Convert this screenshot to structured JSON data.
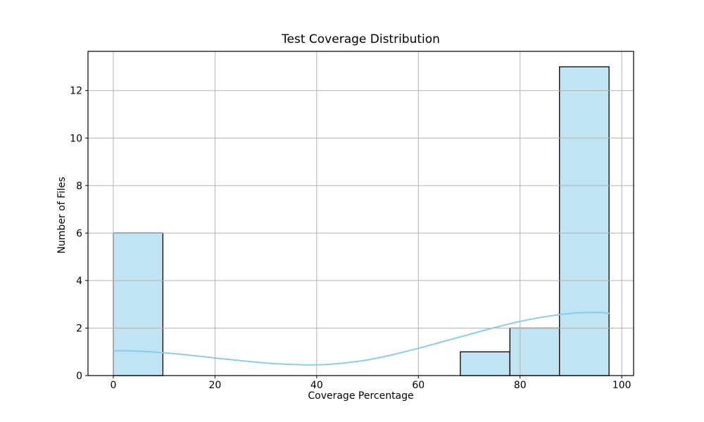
{
  "chart_data": {
    "type": "bar",
    "subtype": "histogram-with-kde",
    "title": "Test Coverage Distribution",
    "xlabel": "Coverage Percentage",
    "ylabel": "Number of Files",
    "xlim": [
      -4.98,
      102.33
    ],
    "ylim": [
      0,
      13.65
    ],
    "x_ticks": [
      0,
      20,
      40,
      60,
      80,
      100
    ],
    "y_ticks": [
      0,
      2,
      4,
      6,
      8,
      10,
      12
    ],
    "grid": true,
    "legend": false,
    "bars": [
      {
        "bin_start": 0,
        "bin_end": 9.75,
        "count": 6
      },
      {
        "bin_start": 68.25,
        "bin_end": 78,
        "count": 1
      },
      {
        "bin_start": 78,
        "bin_end": 87.75,
        "count": 2
      },
      {
        "bin_start": 87.75,
        "bin_end": 97.5,
        "count": 13
      }
    ],
    "kde": {
      "x": [
        0,
        5,
        10,
        15,
        20,
        25,
        30,
        35,
        40,
        45,
        50,
        55,
        60,
        65,
        70,
        75,
        80,
        85,
        90,
        95,
        97.5
      ],
      "y": [
        1.05,
        1.03,
        0.96,
        0.86,
        0.74,
        0.63,
        0.53,
        0.47,
        0.45,
        0.52,
        0.66,
        0.88,
        1.15,
        1.44,
        1.73,
        2.02,
        2.28,
        2.48,
        2.62,
        2.66,
        2.62
      ]
    },
    "colors": {
      "background": "#ffffff",
      "bar_fill": "#c1e4f4",
      "bar_edge": "#000000",
      "kde_line": "#87ceeb",
      "grid": "#b2b2b2",
      "spine": "#000000",
      "tick": "#000000",
      "text": "#000000"
    }
  }
}
